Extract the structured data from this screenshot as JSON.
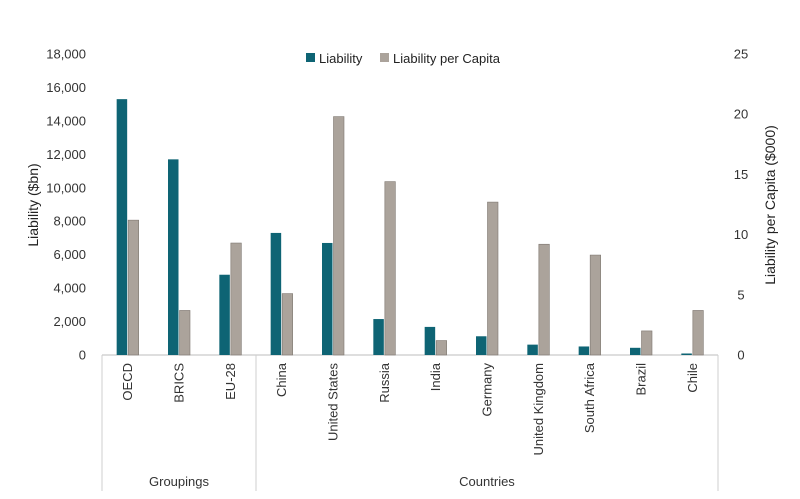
{
  "chart_data": {
    "type": "bar",
    "legend_position": "top",
    "colors": {
      "Liability": "#0e6474",
      "Liability per Capita": "#aba39b"
    },
    "categories": [
      "OECD",
      "BRICS",
      "EU-28",
      "China",
      "United States",
      "Russia",
      "India",
      "Germany",
      "United Kingdom",
      "South Africa",
      "Brazil",
      "Chile"
    ],
    "series": [
      {
        "name": "Liability",
        "axis": "left",
        "values": [
          15300,
          11700,
          4800,
          7300,
          6700,
          2150,
          1680,
          1120,
          620,
          510,
          430,
          90
        ]
      },
      {
        "name": "Liability per Capita",
        "axis": "right",
        "values": [
          11.2,
          3.7,
          9.3,
          5.1,
          19.8,
          14.4,
          1.2,
          12.7,
          9.2,
          8.3,
          2.0,
          3.7
        ]
      }
    ],
    "ylabel": "Liability ($bn)",
    "y2label": "Liability per Capita ($000)",
    "ylim": [
      0,
      18000
    ],
    "y2lim": [
      0,
      25
    ],
    "yticks": [
      "0",
      "2,000",
      "4,000",
      "6,000",
      "8,000",
      "10,000",
      "12,000",
      "14,000",
      "16,000",
      "18,000"
    ],
    "y2ticks": [
      "0",
      "5",
      "10",
      "15",
      "20",
      "25"
    ],
    "groups": [
      {
        "label": "Groupings",
        "count": 3
      },
      {
        "label": "Countries",
        "count": 9
      }
    ],
    "grid": false
  }
}
